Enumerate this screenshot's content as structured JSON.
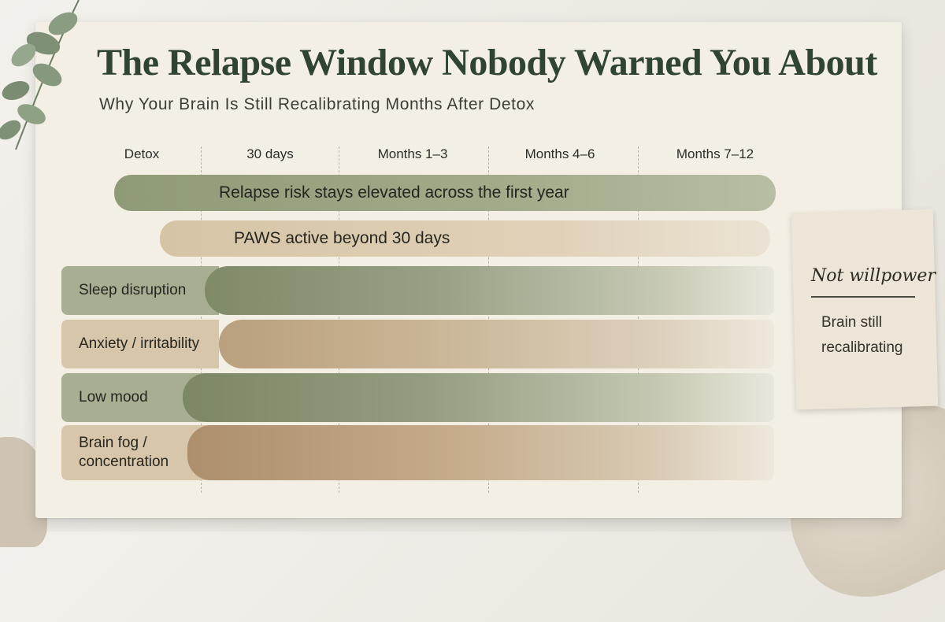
{
  "title": "The Relapse Window Nobody Warned You About",
  "subtitle": "Why Your Brain Is Still Recalibrating Months After Detox",
  "timeline": {
    "ticks": [
      "Detox",
      "30 days",
      "Months 1–3",
      "Months 4–6",
      "Months 7–12"
    ]
  },
  "bands": {
    "risk": "Relapse risk stays elevated across the first year",
    "paws": "PAWS active beyond 30 days"
  },
  "symptoms": [
    "Sleep disruption",
    "Anxiety / irritability",
    "Low mood",
    "Brain fog / concentration"
  ],
  "note": {
    "heading": "Not willpower",
    "body": "Brain still recalibrating"
  },
  "colors": {
    "title": "#2f4431",
    "sage": "#8f9a77",
    "tan": "#d6c4a5",
    "paper": "#f4efe5"
  },
  "decorations": [
    "eucalyptus-leaves",
    "linen-fabric",
    "stone"
  ]
}
